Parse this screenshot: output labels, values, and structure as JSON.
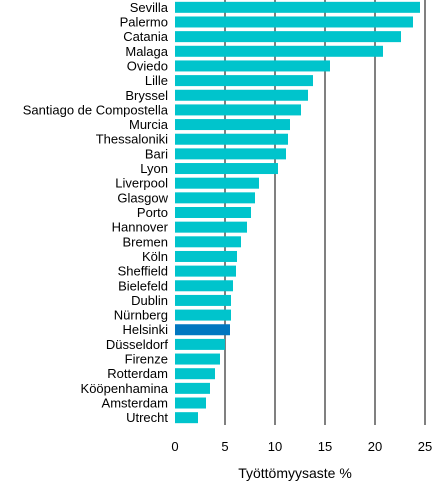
{
  "chart_data": {
    "type": "bar",
    "orientation": "horizontal",
    "xlabel": "Työttömyysaste %",
    "ylabel": "",
    "xlim": [
      0,
      25
    ],
    "xticks": [
      0,
      5,
      10,
      15,
      20,
      25
    ],
    "grid": "vertical",
    "bar_color": "#00c4cc",
    "highlight_color": "#0077c0",
    "highlight_category": "Helsinki",
    "categories": [
      "Sevilla",
      "Palermo",
      "Catania",
      "Malaga",
      "Oviedo",
      "Lille",
      "Bryssel",
      "Santiago de Compostella",
      "Murcia",
      "Thessaloniki",
      "Bari",
      "Lyon",
      "Liverpool",
      "Glasgow",
      "Porto",
      "Hannover",
      "Bremen",
      "Köln",
      "Sheffield",
      "Bielefeld",
      "Dublin",
      "Nürnberg",
      "Helsinki",
      "Düsseldorf",
      "Firenze",
      "Rotterdam",
      "Kööpenhamina",
      "Amsterdam",
      "Utrecht"
    ],
    "values": [
      24.5,
      23.8,
      22.6,
      20.8,
      15.5,
      13.8,
      13.3,
      12.6,
      11.5,
      11.3,
      11.1,
      10.3,
      8.4,
      8.0,
      7.6,
      7.2,
      6.6,
      6.2,
      6.1,
      5.8,
      5.6,
      5.6,
      5.5,
      5.0,
      4.5,
      4.0,
      3.5,
      3.1,
      2.3
    ]
  }
}
